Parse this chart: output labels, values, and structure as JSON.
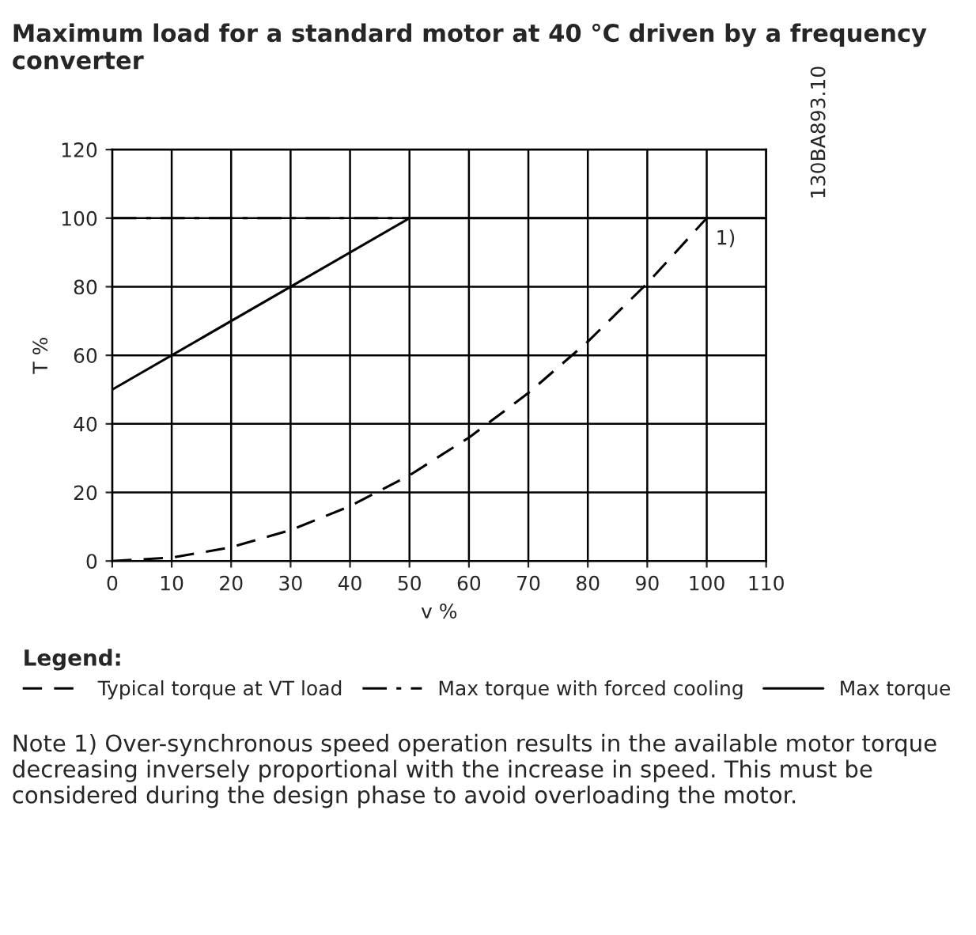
{
  "chart_data": {
    "type": "line",
    "title": "Maximum load for a standard motor at 40 °C driven by a frequency converter",
    "xlabel": "v %",
    "ylabel": "T %",
    "xlim": [
      0,
      110
    ],
    "ylim": [
      0,
      120
    ],
    "xticks": [
      0,
      10,
      20,
      30,
      40,
      50,
      60,
      70,
      80,
      90,
      100,
      110
    ],
    "yticks": [
      0,
      20,
      40,
      60,
      80,
      100,
      120
    ],
    "grid": true,
    "legend": "bottom",
    "legend_title": "Legend:",
    "series": [
      {
        "name": "Typical torque at VT load",
        "color": "#000000",
        "line_style": "dashed",
        "x": [
          0,
          10,
          20,
          30,
          40,
          50,
          60,
          70,
          80,
          90,
          100
        ],
        "values": [
          0,
          1,
          4,
          9,
          16,
          25,
          36,
          49,
          64,
          81,
          100
        ]
      },
      {
        "name": "Max torque with forced cooling",
        "color": "#000000",
        "line_style": "dashdot",
        "x": [
          0,
          50
        ],
        "values": [
          100,
          100
        ]
      },
      {
        "name": "Max torque",
        "color": "#000000",
        "line_style": "solid",
        "x": [
          0,
          50,
          110
        ],
        "values": [
          50,
          100,
          100
        ]
      }
    ],
    "annotations": [
      {
        "text": "1)",
        "x": 100,
        "y": 100
      },
      "130BA893.10",
      "Note 1) Over-synchronous speed operation results in the available motor torque decreasing inversely proportional with the increase in speed. This must be considered during the design phase to avoid overloading the motor."
    ]
  }
}
